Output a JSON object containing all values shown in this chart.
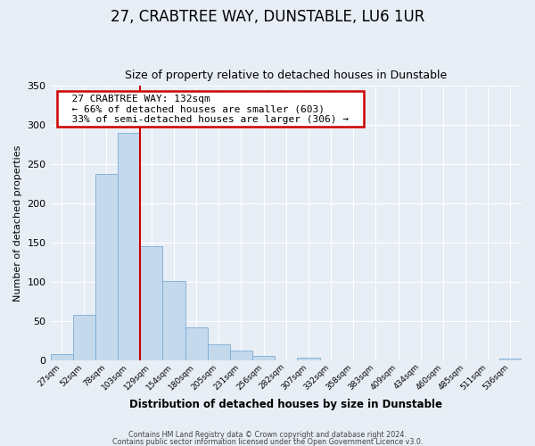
{
  "title": "27, CRABTREE WAY, DUNSTABLE, LU6 1UR",
  "subtitle": "Size of property relative to detached houses in Dunstable",
  "xlabel": "Distribution of detached houses by size in Dunstable",
  "ylabel": "Number of detached properties",
  "bin_labels": [
    "27sqm",
    "52sqm",
    "78sqm",
    "103sqm",
    "129sqm",
    "154sqm",
    "180sqm",
    "205sqm",
    "231sqm",
    "256sqm",
    "282sqm",
    "307sqm",
    "332sqm",
    "358sqm",
    "383sqm",
    "409sqm",
    "434sqm",
    "460sqm",
    "485sqm",
    "511sqm",
    "536sqm"
  ],
  "bar_heights": [
    8,
    58,
    238,
    290,
    145,
    101,
    42,
    20,
    12,
    5,
    0,
    3,
    0,
    0,
    0,
    0,
    0,
    0,
    0,
    0,
    2
  ],
  "bar_color": "#c5d9ed",
  "bar_edge_color": "#7aadd4",
  "vline_x": 4,
  "vline_color": "#cc0000",
  "ylim": [
    0,
    350
  ],
  "yticks": [
    0,
    50,
    100,
    150,
    200,
    250,
    300,
    350
  ],
  "annotation_title": "27 CRABTREE WAY: 132sqm",
  "annotation_line1": "← 66% of detached houses are smaller (603)",
  "annotation_line2": "33% of semi-detached houses are larger (306) →",
  "annotation_box_color": "#ffffff",
  "annotation_border_color": "#cc0000",
  "footer_line1": "Contains HM Land Registry data © Crown copyright and database right 2024.",
  "footer_line2": "Contains public sector information licensed under the Open Government Licence v3.0.",
  "background_color": "#e8eef5",
  "plot_background": "#e8eef5",
  "grid_color": "#ffffff",
  "title_fontsize": 12,
  "subtitle_fontsize": 9
}
